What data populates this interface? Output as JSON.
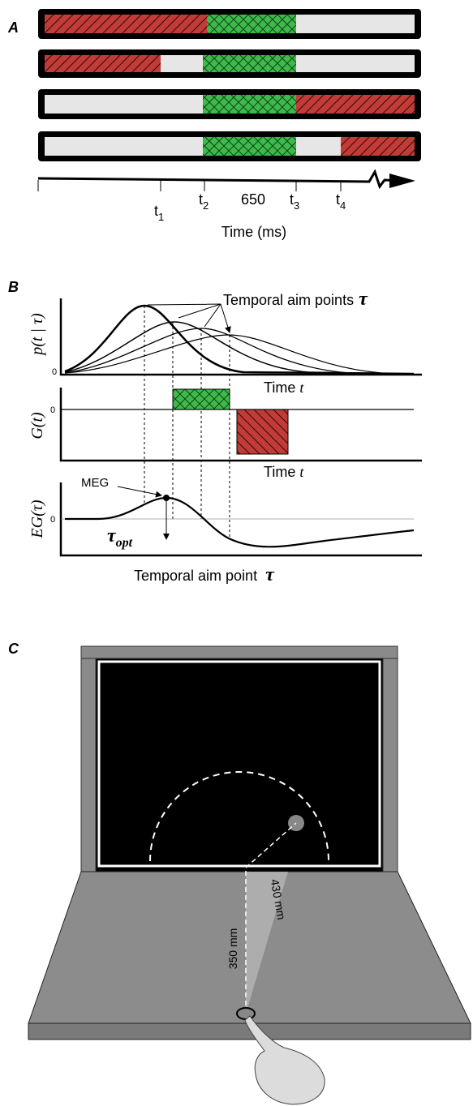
{
  "panel_a": {
    "label": "A",
    "ticks": [
      {
        "base": "t",
        "sub": "1"
      },
      {
        "base": "t",
        "sub": "2"
      },
      {
        "base": "t",
        "sub": "3"
      },
      {
        "base": "t",
        "sub": "4"
      }
    ],
    "mid_tick": "650",
    "axis_label": "Time (ms)"
  },
  "panel_b": {
    "label": "B",
    "aim_points": "Temporal aim points",
    "tau": "τ",
    "top": {
      "y_label": "p(t | τ)",
      "zero": "0",
      "x_label": "Time",
      "x_var": "t"
    },
    "middle": {
      "y_label": "G(t)",
      "zero": "0",
      "x_label": "Time",
      "x_var": "t"
    },
    "bottom": {
      "y_label": "EG(τ)",
      "zero": "0",
      "x_label": "Temporal aim point",
      "x_var": "τ",
      "meg": "MEG",
      "tau_opt": "τ",
      "tau_opt_sub": "opt"
    }
  },
  "panel_c": {
    "label": "C",
    "dist_vertical": "350 mm",
    "dist_target": "430 mm"
  }
}
